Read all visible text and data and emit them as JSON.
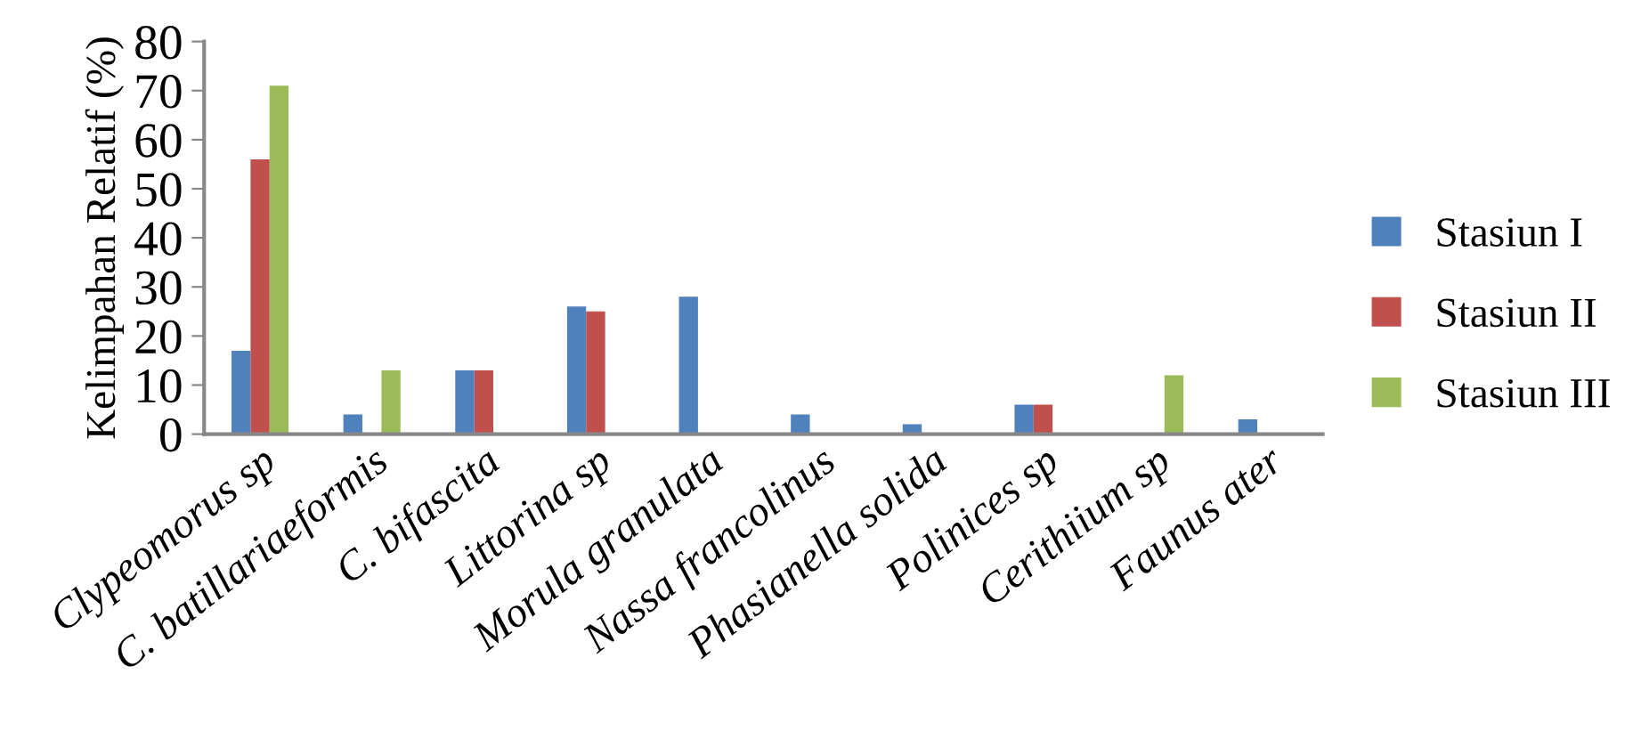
{
  "chart_data": {
    "type": "bar",
    "ylabel": "Kelimpahan Relatif (%)",
    "categories": [
      "Clypeomorus sp",
      "C. batillariaeformis",
      "C. bifascita",
      "Littorina sp",
      "Morula granulata",
      "Nassa francolinus",
      "Phasianella solida",
      "Polinices sp",
      "Cerithiium sp",
      "Faunus ater"
    ],
    "series": [
      {
        "name": "Stasiun I",
        "color": "#4f81bd",
        "values": [
          17,
          4,
          13,
          26,
          28,
          4,
          2,
          6,
          0,
          3
        ]
      },
      {
        "name": "Stasiun II",
        "color": "#c0504d",
        "values": [
          56,
          0,
          13,
          25,
          0,
          0,
          0,
          6,
          0,
          0
        ]
      },
      {
        "name": "Stasiun III",
        "color": "#9bbb59",
        "values": [
          71,
          13,
          0.3,
          0,
          0,
          0,
          0,
          0,
          12,
          0
        ]
      }
    ],
    "ylim": [
      0,
      80
    ],
    "yticks": [
      0,
      10,
      20,
      30,
      40,
      50,
      60,
      70,
      80
    ],
    "grid": false,
    "legend": "right"
  }
}
